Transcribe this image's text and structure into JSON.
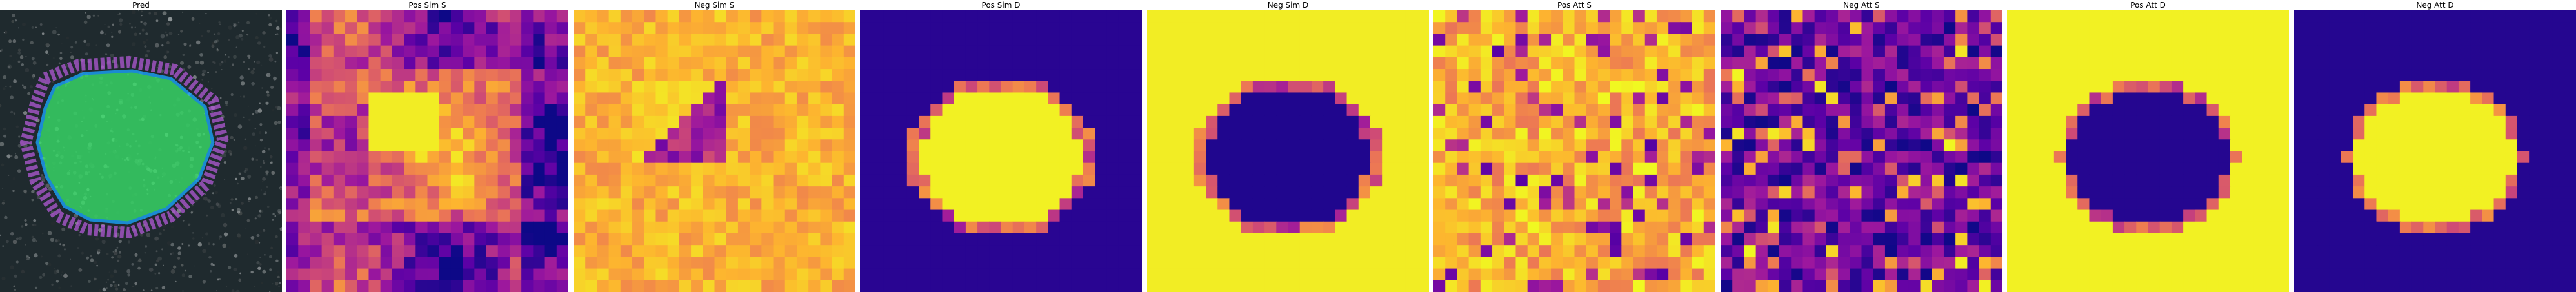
{
  "panels": [
    {
      "title": "Pred",
      "kind": "photo",
      "palette": "photo"
    },
    {
      "title": "Pos Sim S",
      "kind": "heatmap",
      "palette": "plasma",
      "pattern": "posSimS"
    },
    {
      "title": "Neg Sim S",
      "kind": "heatmap",
      "palette": "plasma",
      "pattern": "negSimS"
    },
    {
      "title": "Pos Sim D",
      "kind": "heatmap",
      "palette": "plasma",
      "pattern": "blobBright"
    },
    {
      "title": "Neg Sim D",
      "kind": "heatmap",
      "palette": "plasma",
      "pattern": "blobDark"
    },
    {
      "title": "Pos Att S",
      "kind": "heatmap",
      "palette": "plasma",
      "pattern": "noiseBright"
    },
    {
      "title": "Neg Att S",
      "kind": "heatmap",
      "palette": "plasma",
      "pattern": "noiseDark"
    },
    {
      "title": "Pos Att D",
      "kind": "heatmap",
      "palette": "plasma",
      "pattern": "blobDarkOnBright"
    },
    {
      "title": "Neg Att D",
      "kind": "heatmap",
      "palette": "plasma",
      "pattern": "blobBrightOnDark"
    }
  ],
  "colors": {
    "plasma": [
      "#0d0887",
      "#5c01a6",
      "#9c179e",
      "#cc4778",
      "#ed7953",
      "#fdb42f",
      "#f0f921"
    ],
    "mask": "#39e36b",
    "mask_outline": "#1aa6ff",
    "photo_dark": "#1f2a2e"
  }
}
